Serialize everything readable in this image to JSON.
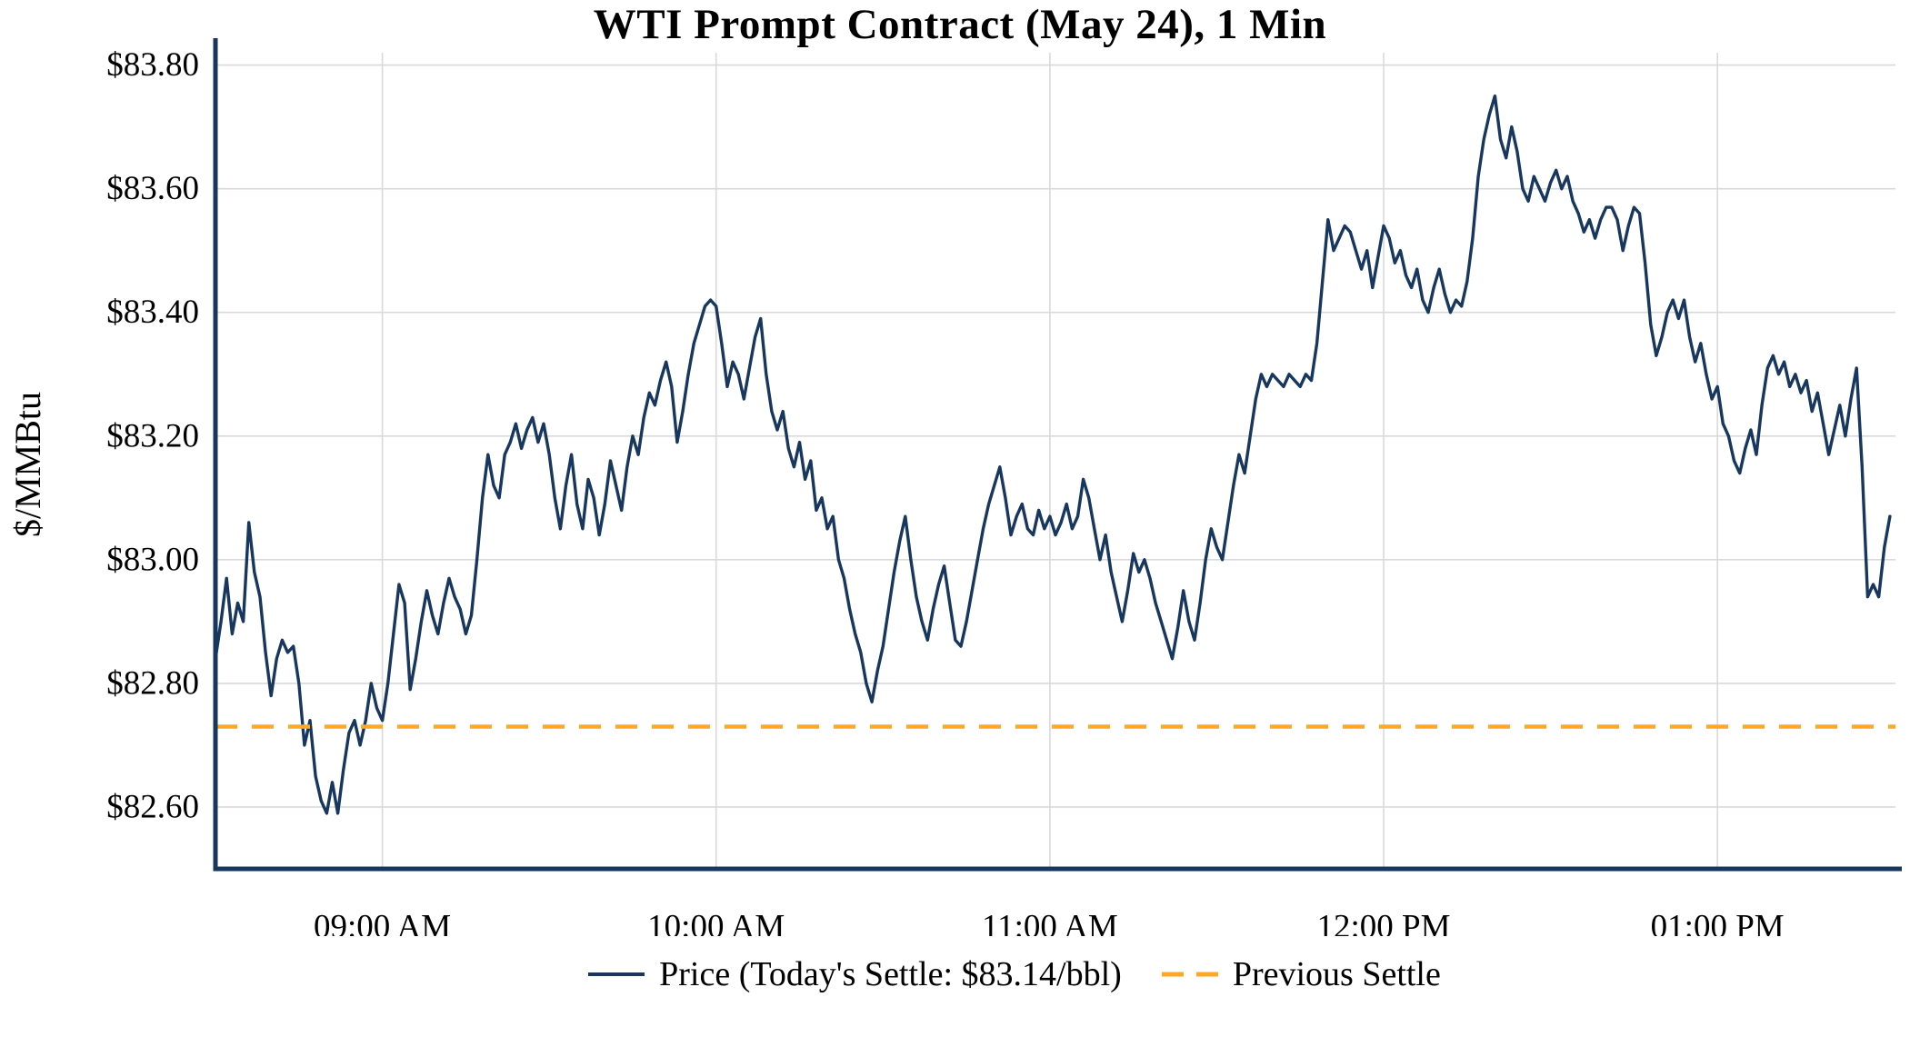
{
  "chart_data": {
    "type": "line",
    "title": "WTI Prompt Contract (May 24), 1 Min",
    "xlabel": "",
    "ylabel": "$/MMBtu",
    "xlim": [
      510,
      812
    ],
    "ylim": [
      82.5,
      83.82
    ],
    "grid": true,
    "legend_position": "bottom",
    "grid_color": "#d9d9d9",
    "axis_color": "#17375e",
    "text_color": "#000000",
    "x_ticks": [
      540,
      600,
      660,
      720,
      780
    ],
    "x_tick_labels": [
      "09:00 AM",
      "10:00 AM",
      "11:00 AM",
      "12:00 PM",
      "01:00 PM"
    ],
    "y_ticks": [
      82.6,
      82.8,
      83.0,
      83.2,
      83.4,
      83.6,
      83.8
    ],
    "y_tick_labels": [
      "$82.60",
      "$82.80",
      "$83.00",
      "$83.20",
      "$83.40",
      "$83.60",
      "$83.80"
    ],
    "todays_settle": 83.14,
    "previous_settle": 82.73,
    "series": [
      {
        "name": "Price (Today's Settle: $83.14/bbl)",
        "type": "line",
        "color": "#17375e",
        "style": "solid",
        "points": [
          [
            510,
            82.84
          ],
          [
            511,
            82.9
          ],
          [
            512,
            82.97
          ],
          [
            513,
            82.88
          ],
          [
            514,
            82.93
          ],
          [
            515,
            82.9
          ],
          [
            516,
            83.06
          ],
          [
            517,
            82.98
          ],
          [
            518,
            82.94
          ],
          [
            519,
            82.85
          ],
          [
            520,
            82.78
          ],
          [
            521,
            82.84
          ],
          [
            522,
            82.87
          ],
          [
            523,
            82.85
          ],
          [
            524,
            82.86
          ],
          [
            525,
            82.8
          ],
          [
            526,
            82.7
          ],
          [
            527,
            82.74
          ],
          [
            528,
            82.65
          ],
          [
            529,
            82.61
          ],
          [
            530,
            82.59
          ],
          [
            531,
            82.64
          ],
          [
            532,
            82.59
          ],
          [
            533,
            82.66
          ],
          [
            534,
            82.72
          ],
          [
            535,
            82.74
          ],
          [
            536,
            82.7
          ],
          [
            537,
            82.74
          ],
          [
            538,
            82.8
          ],
          [
            539,
            82.76
          ],
          [
            540,
            82.74
          ],
          [
            541,
            82.8
          ],
          [
            542,
            82.88
          ],
          [
            543,
            82.96
          ],
          [
            544,
            82.93
          ],
          [
            545,
            82.79
          ],
          [
            546,
            82.84
          ],
          [
            547,
            82.9
          ],
          [
            548,
            82.95
          ],
          [
            549,
            82.91
          ],
          [
            550,
            82.88
          ],
          [
            551,
            82.93
          ],
          [
            552,
            82.97
          ],
          [
            553,
            82.94
          ],
          [
            554,
            82.92
          ],
          [
            555,
            82.88
          ],
          [
            556,
            82.91
          ],
          [
            557,
            83.0
          ],
          [
            558,
            83.1
          ],
          [
            559,
            83.17
          ],
          [
            560,
            83.12
          ],
          [
            561,
            83.1
          ],
          [
            562,
            83.17
          ],
          [
            563,
            83.19
          ],
          [
            564,
            83.22
          ],
          [
            565,
            83.18
          ],
          [
            566,
            83.21
          ],
          [
            567,
            83.23
          ],
          [
            568,
            83.19
          ],
          [
            569,
            83.22
          ],
          [
            570,
            83.17
          ],
          [
            571,
            83.1
          ],
          [
            572,
            83.05
          ],
          [
            573,
            83.12
          ],
          [
            574,
            83.17
          ],
          [
            575,
            83.09
          ],
          [
            576,
            83.05
          ],
          [
            577,
            83.13
          ],
          [
            578,
            83.1
          ],
          [
            579,
            83.04
          ],
          [
            580,
            83.09
          ],
          [
            581,
            83.16
          ],
          [
            582,
            83.12
          ],
          [
            583,
            83.08
          ],
          [
            584,
            83.15
          ],
          [
            585,
            83.2
          ],
          [
            586,
            83.17
          ],
          [
            587,
            83.23
          ],
          [
            588,
            83.27
          ],
          [
            589,
            83.25
          ],
          [
            590,
            83.29
          ],
          [
            591,
            83.32
          ],
          [
            592,
            83.28
          ],
          [
            593,
            83.19
          ],
          [
            594,
            83.24
          ],
          [
            595,
            83.3
          ],
          [
            596,
            83.35
          ],
          [
            597,
            83.38
          ],
          [
            598,
            83.41
          ],
          [
            599,
            83.42
          ],
          [
            600,
            83.41
          ],
          [
            601,
            83.35
          ],
          [
            602,
            83.28
          ],
          [
            603,
            83.32
          ],
          [
            604,
            83.3
          ],
          [
            605,
            83.26
          ],
          [
            606,
            83.31
          ],
          [
            607,
            83.36
          ],
          [
            608,
            83.39
          ],
          [
            609,
            83.3
          ],
          [
            610,
            83.24
          ],
          [
            611,
            83.21
          ],
          [
            612,
            83.24
          ],
          [
            613,
            83.18
          ],
          [
            614,
            83.15
          ],
          [
            615,
            83.19
          ],
          [
            616,
            83.13
          ],
          [
            617,
            83.16
          ],
          [
            618,
            83.08
          ],
          [
            619,
            83.1
          ],
          [
            620,
            83.05
          ],
          [
            621,
            83.07
          ],
          [
            622,
            83.0
          ],
          [
            623,
            82.97
          ],
          [
            624,
            82.92
          ],
          [
            625,
            82.88
          ],
          [
            626,
            82.85
          ],
          [
            627,
            82.8
          ],
          [
            628,
            82.77
          ],
          [
            629,
            82.82
          ],
          [
            630,
            82.86
          ],
          [
            631,
            82.92
          ],
          [
            632,
            82.98
          ],
          [
            633,
            83.03
          ],
          [
            634,
            83.07
          ],
          [
            635,
            83.0
          ],
          [
            636,
            82.94
          ],
          [
            637,
            82.9
          ],
          [
            638,
            82.87
          ],
          [
            639,
            82.92
          ],
          [
            640,
            82.96
          ],
          [
            641,
            82.99
          ],
          [
            642,
            82.93
          ],
          [
            643,
            82.87
          ],
          [
            644,
            82.86
          ],
          [
            645,
            82.9
          ],
          [
            646,
            82.95
          ],
          [
            647,
            83.0
          ],
          [
            648,
            83.05
          ],
          [
            649,
            83.09
          ],
          [
            650,
            83.12
          ],
          [
            651,
            83.15
          ],
          [
            652,
            83.1
          ],
          [
            653,
            83.04
          ],
          [
            654,
            83.07
          ],
          [
            655,
            83.09
          ],
          [
            656,
            83.05
          ],
          [
            657,
            83.04
          ],
          [
            658,
            83.08
          ],
          [
            659,
            83.05
          ],
          [
            660,
            83.07
          ],
          [
            661,
            83.04
          ],
          [
            662,
            83.06
          ],
          [
            663,
            83.09
          ],
          [
            664,
            83.05
          ],
          [
            665,
            83.07
          ],
          [
            666,
            83.13
          ],
          [
            667,
            83.1
          ],
          [
            668,
            83.05
          ],
          [
            669,
            83.0
          ],
          [
            670,
            83.04
          ],
          [
            671,
            82.98
          ],
          [
            672,
            82.94
          ],
          [
            673,
            82.9
          ],
          [
            674,
            82.95
          ],
          [
            675,
            83.01
          ],
          [
            676,
            82.98
          ],
          [
            677,
            83.0
          ],
          [
            678,
            82.97
          ],
          [
            679,
            82.93
          ],
          [
            680,
            82.9
          ],
          [
            681,
            82.87
          ],
          [
            682,
            82.84
          ],
          [
            683,
            82.89
          ],
          [
            684,
            82.95
          ],
          [
            685,
            82.9
          ],
          [
            686,
            82.87
          ],
          [
            687,
            82.93
          ],
          [
            688,
            83.0
          ],
          [
            689,
            83.05
          ],
          [
            690,
            83.02
          ],
          [
            691,
            83.0
          ],
          [
            692,
            83.06
          ],
          [
            693,
            83.12
          ],
          [
            694,
            83.17
          ],
          [
            695,
            83.14
          ],
          [
            696,
            83.2
          ],
          [
            697,
            83.26
          ],
          [
            698,
            83.3
          ],
          [
            699,
            83.28
          ],
          [
            700,
            83.3
          ],
          [
            701,
            83.29
          ],
          [
            702,
            83.28
          ],
          [
            703,
            83.3
          ],
          [
            704,
            83.29
          ],
          [
            705,
            83.28
          ],
          [
            706,
            83.3
          ],
          [
            707,
            83.29
          ],
          [
            708,
            83.35
          ],
          [
            709,
            83.45
          ],
          [
            710,
            83.55
          ],
          [
            711,
            83.5
          ],
          [
            712,
            83.52
          ],
          [
            713,
            83.54
          ],
          [
            714,
            83.53
          ],
          [
            715,
            83.5
          ],
          [
            716,
            83.47
          ],
          [
            717,
            83.5
          ],
          [
            718,
            83.44
          ],
          [
            719,
            83.49
          ],
          [
            720,
            83.54
          ],
          [
            721,
            83.52
          ],
          [
            722,
            83.48
          ],
          [
            723,
            83.5
          ],
          [
            724,
            83.46
          ],
          [
            725,
            83.44
          ],
          [
            726,
            83.47
          ],
          [
            727,
            83.42
          ],
          [
            728,
            83.4
          ],
          [
            729,
            83.44
          ],
          [
            730,
            83.47
          ],
          [
            731,
            83.43
          ],
          [
            732,
            83.4
          ],
          [
            733,
            83.42
          ],
          [
            734,
            83.41
          ],
          [
            735,
            83.45
          ],
          [
            736,
            83.52
          ],
          [
            737,
            83.62
          ],
          [
            738,
            83.68
          ],
          [
            739,
            83.72
          ],
          [
            740,
            83.75
          ],
          [
            741,
            83.68
          ],
          [
            742,
            83.65
          ],
          [
            743,
            83.7
          ],
          [
            744,
            83.66
          ],
          [
            745,
            83.6
          ],
          [
            746,
            83.58
          ],
          [
            747,
            83.62
          ],
          [
            748,
            83.6
          ],
          [
            749,
            83.58
          ],
          [
            750,
            83.61
          ],
          [
            751,
            83.63
          ],
          [
            752,
            83.6
          ],
          [
            753,
            83.62
          ],
          [
            754,
            83.58
          ],
          [
            755,
            83.56
          ],
          [
            756,
            83.53
          ],
          [
            757,
            83.55
          ],
          [
            758,
            83.52
          ],
          [
            759,
            83.55
          ],
          [
            760,
            83.57
          ],
          [
            761,
            83.57
          ],
          [
            762,
            83.55
          ],
          [
            763,
            83.5
          ],
          [
            764,
            83.54
          ],
          [
            765,
            83.57
          ],
          [
            766,
            83.56
          ],
          [
            767,
            83.48
          ],
          [
            768,
            83.38
          ],
          [
            769,
            83.33
          ],
          [
            770,
            83.36
          ],
          [
            771,
            83.4
          ],
          [
            772,
            83.42
          ],
          [
            773,
            83.39
          ],
          [
            774,
            83.42
          ],
          [
            775,
            83.36
          ],
          [
            776,
            83.32
          ],
          [
            777,
            83.35
          ],
          [
            778,
            83.3
          ],
          [
            779,
            83.26
          ],
          [
            780,
            83.28
          ],
          [
            781,
            83.22
          ],
          [
            782,
            83.2
          ],
          [
            783,
            83.16
          ],
          [
            784,
            83.14
          ],
          [
            785,
            83.18
          ],
          [
            786,
            83.21
          ],
          [
            787,
            83.17
          ],
          [
            788,
            83.25
          ],
          [
            789,
            83.31
          ],
          [
            790,
            83.33
          ],
          [
            791,
            83.3
          ],
          [
            792,
            83.32
          ],
          [
            793,
            83.28
          ],
          [
            794,
            83.3
          ],
          [
            795,
            83.27
          ],
          [
            796,
            83.29
          ],
          [
            797,
            83.24
          ],
          [
            798,
            83.27
          ],
          [
            799,
            83.22
          ],
          [
            800,
            83.17
          ],
          [
            801,
            83.21
          ],
          [
            802,
            83.25
          ],
          [
            803,
            83.2
          ],
          [
            804,
            83.26
          ],
          [
            805,
            83.31
          ],
          [
            806,
            83.15
          ],
          [
            807,
            82.94
          ],
          [
            808,
            82.96
          ],
          [
            809,
            82.94
          ],
          [
            810,
            83.02
          ],
          [
            811,
            83.07
          ]
        ]
      },
      {
        "name": "Previous Settle",
        "type": "hline",
        "color": "#ffa726",
        "style": "dashed",
        "value": 82.73
      }
    ]
  }
}
